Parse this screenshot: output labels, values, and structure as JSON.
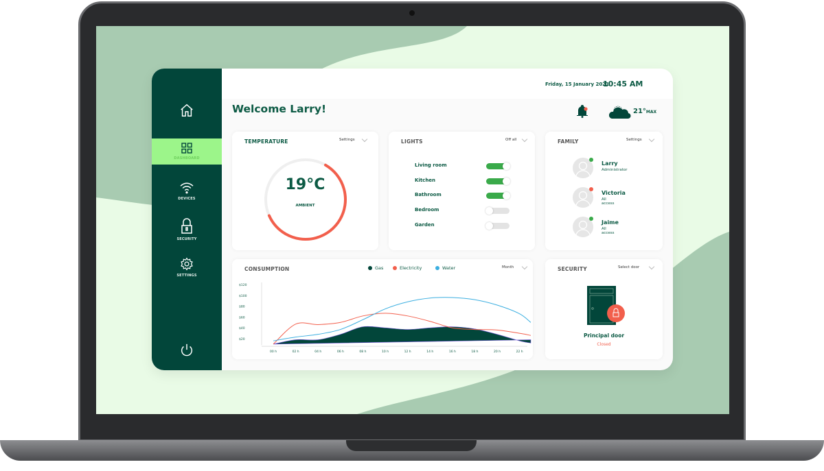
{
  "colors": {
    "sidebar": "#02463a",
    "accent": "#9cf58a",
    "temp": "#f25f4c",
    "gas": "#02463a",
    "electricity": "#f25f4c",
    "water": "#3aaee0",
    "toggle_on": "#3aaa4a"
  },
  "sidebar": {
    "items": [
      {
        "icon": "home-icon",
        "label": ""
      },
      {
        "icon": "dashboard-grid-icon",
        "label": "DASHBOARD",
        "active": true
      },
      {
        "icon": "wifi-icon",
        "label": "DEVICES"
      },
      {
        "icon": "lock-icon",
        "label": "SECURITY"
      },
      {
        "icon": "gear-icon",
        "label": "SETTINGS"
      }
    ],
    "power_icon": "power-icon"
  },
  "header": {
    "date": "Friday, 15 January 2021",
    "time": "10:45 AM",
    "welcome": "Welcome Larry!",
    "weather": "21°",
    "weather_unit": "MAX"
  },
  "temperature": {
    "title": "TEMPERATURE",
    "select": "Settings",
    "value": "19°C",
    "label": "AMBIENT",
    "level_percent": 60
  },
  "lights": {
    "title": "LIGHTS",
    "select": "Off all",
    "items": [
      {
        "name": "Living room",
        "on": true
      },
      {
        "name": "Kitchen",
        "on": true
      },
      {
        "name": "Bathroom",
        "on": true
      },
      {
        "name": "Bedroom",
        "on": false
      },
      {
        "name": "Garden",
        "on": false
      }
    ]
  },
  "family": {
    "title": "FAMILY",
    "select": "Settings",
    "members": [
      {
        "name": "Larry",
        "role": "Administrator",
        "status": "#3aaa4a"
      },
      {
        "name": "Victoria",
        "role": "All access",
        "status": "#f25f4c"
      },
      {
        "name": "Jaime",
        "role": "All access",
        "status": "#3aaa4a"
      }
    ]
  },
  "security": {
    "title": "SECURITY",
    "select": "Select door",
    "door": "Principal door",
    "status": "Closed"
  },
  "chart_data": {
    "type": "line",
    "title": "CONSUMPTION",
    "select": "Month",
    "xtick_labels": [
      "00 h",
      "02 h",
      "04 h",
      "06 h",
      "08 h",
      "10 h",
      "12 h",
      "14 h",
      "16 h",
      "18 h",
      "20 h",
      "22 h"
    ],
    "ytick_labels": [
      "$120",
      "$100",
      "$80",
      "$60",
      "$40",
      "$20"
    ],
    "yticks": [
      120,
      100,
      80,
      60,
      40,
      20
    ],
    "ylim": [
      10,
      120
    ],
    "x": [
      0,
      2,
      4,
      6,
      8,
      10,
      12,
      14,
      16,
      18,
      20,
      22,
      23
    ],
    "series": [
      {
        "name": "Gas",
        "style": "area",
        "values": [
          10,
          18,
          18,
          28,
          42,
          40,
          37,
          40,
          42,
          38,
          28,
          16,
          12
        ]
      },
      {
        "name": "Electricity",
        "style": "line",
        "values": [
          10,
          47,
          46,
          50,
          62,
          67,
          62,
          52,
          40,
          37,
          36,
          30,
          26
        ]
      },
      {
        "name": "Water",
        "style": "line",
        "values": [
          16,
          23,
          28,
          37,
          55,
          75,
          88,
          95,
          96,
          92,
          82,
          66,
          50
        ]
      }
    ],
    "legend": "top-center",
    "grid": false
  }
}
